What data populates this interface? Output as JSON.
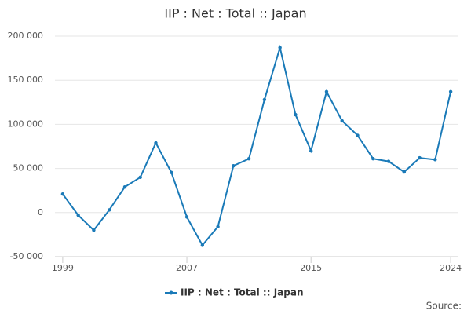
{
  "chart_data": {
    "type": "line",
    "title": "IIP : Net : Total :: Japan",
    "x": [
      1999,
      2000,
      2001,
      2002,
      2003,
      2004,
      2005,
      2006,
      2007,
      2008,
      2009,
      2010,
      2011,
      2012,
      2013,
      2014,
      2015,
      2016,
      2017,
      2018,
      2019,
      2020,
      2021,
      2022,
      2023,
      2024
    ],
    "series": [
      {
        "name": "IIP : Net : Total :: Japan",
        "color": "#1a7ab8",
        "values": [
          21000,
          -3000,
          -20000,
          3000,
          29000,
          40000,
          79000,
          45500,
          -5000,
          -37000,
          -16000,
          53000,
          61000,
          128000,
          187000,
          111000,
          70000,
          137000,
          104000,
          87500,
          61000,
          58000,
          46000,
          62000,
          60000,
          137000
        ]
      }
    ],
    "xlim": [
      1998.5,
      2024.5
    ],
    "xticks": [
      1999,
      2007,
      2015,
      2024
    ],
    "ylim": [
      -50000,
      200000
    ],
    "yticks": [
      {
        "value": -50000,
        "label": "-50 000"
      },
      0,
      {
        "value": 50000,
        "label": "50 000"
      },
      {
        "value": 100000,
        "label": "100 000"
      },
      {
        "value": 150000,
        "label": "150 000"
      },
      {
        "value": 200000,
        "label": "200 000"
      }
    ],
    "grid": true,
    "legend": "bottom",
    "source": "Source:"
  }
}
